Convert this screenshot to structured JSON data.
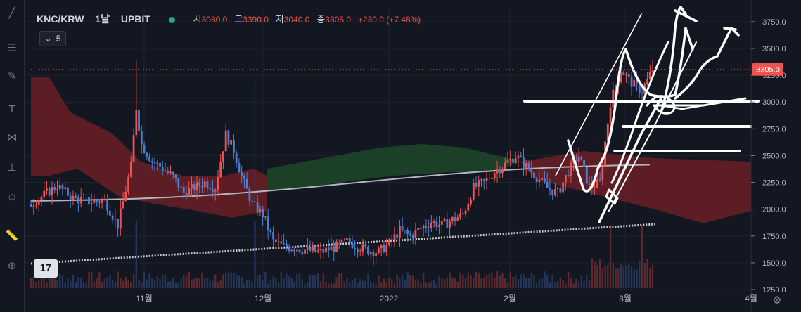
{
  "header": {
    "symbol": "KNC/KRW",
    "timeframe": "1날",
    "exchange": "UPBIT",
    "open_label": "시",
    "open": "3080.0",
    "high_label": "고",
    "high": "3390.0",
    "low_label": "저",
    "low": "3040.0",
    "close_label": "종",
    "close": "3305.0",
    "change": "+230.0 (+7.48%)"
  },
  "indicator_button": {
    "label": "5"
  },
  "logo_text": "17",
  "colors": {
    "background": "#131722",
    "up": "#ef5350",
    "down": "#4a7fd4",
    "cloud_red": "#6b1f24",
    "cloud_green": "#1f4a2a",
    "ma_line": "#b2b5be",
    "price_tag": "#ef5350",
    "drawing": "#ffffff"
  },
  "icons": [
    "trend-line-icon",
    "fib-icon",
    "brush-icon",
    "text-icon",
    "pattern-icon",
    "measure-icon",
    "emoji-icon",
    "ruler-icon",
    "zoom-icon",
    "settings-icon"
  ],
  "chart_data": {
    "type": "candlestick",
    "ylim": [
      1250,
      3900
    ],
    "y_ticks": [
      "3750.0",
      "3500.0",
      "3250.0",
      "3000.0",
      "2750.0",
      "2500.0",
      "2250.0",
      "2000.0",
      "1750.0",
      "1500.0",
      "1250.0"
    ],
    "x_ticks": [
      "11월",
      "12월",
      "2022",
      "2월",
      "3월",
      "4월"
    ],
    "last_price_label": "3305.0",
    "series": [
      {
        "name": "price",
        "start": 2050,
        "end": 3305,
        "low": 1520,
        "high": 3390
      }
    ]
  }
}
